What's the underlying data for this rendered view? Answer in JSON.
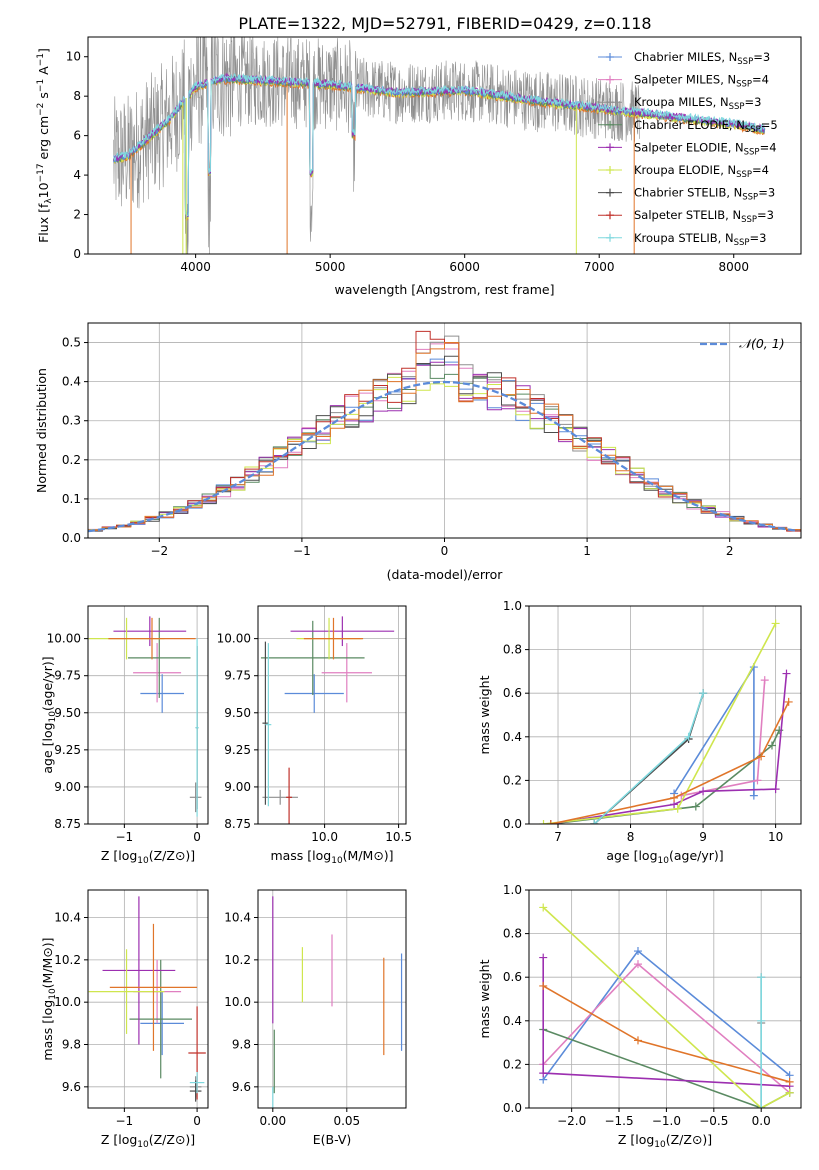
{
  "title": "PLATE=1322, MJD=52791, FIBERID=0429, z=0.118",
  "colors": {
    "chabrier_miles": "#5b8bd9",
    "salpeter_miles": "#e07fc0",
    "kroupa_miles": "#8f8f8f",
    "chabrier_elodie": "#5a8a62",
    "salpeter_elodie": "#9c2fb0",
    "kroupa_elodie": "#cfe64e",
    "chabrier_stelib": "#4d4d4d",
    "salpeter_stelib": "#c0302a",
    "kroupa_stelib": "#7fd8de",
    "orange": "#e0752a"
  },
  "chart_data": [
    {
      "id": "spectrum",
      "type": "line",
      "xlabel": "wavelength [Angstrom, rest frame]",
      "ylabel_parts": [
        "Flux [f",
        "λ",
        "10",
        "−17",
        " erg cm",
        "−2",
        " s",
        "−1",
        " A",
        "−1",
        "]"
      ],
      "xlim": [
        3200,
        8500
      ],
      "ylim": [
        0,
        11
      ],
      "xticks": [
        4000,
        5000,
        6000,
        7000,
        8000
      ],
      "yticks": [
        0,
        2,
        4,
        6,
        8,
        10
      ],
      "legend_position": "top-right",
      "legend": [
        {
          "imf": "Chabrier",
          "lib": "MILES",
          "n": "3",
          "ckey": "chabrier_miles"
        },
        {
          "imf": "Salpeter",
          "lib": "MILES",
          "n": "4",
          "ckey": "salpeter_miles"
        },
        {
          "imf": "Kroupa",
          "lib": "MILES",
          "n": "3",
          "ckey": "kroupa_miles"
        },
        {
          "imf": "Chabrier",
          "lib": "ELODIE",
          "n": "5",
          "ckey": "chabrier_elodie"
        },
        {
          "imf": "Salpeter",
          "lib": "ELODIE",
          "n": "4",
          "ckey": "salpeter_elodie"
        },
        {
          "imf": "Kroupa",
          "lib": "ELODIE",
          "n": "4",
          "ckey": "kroupa_elodie"
        },
        {
          "imf": "Chabrier",
          "lib": "STELIB",
          "n": "3",
          "ckey": "chabrier_stelib"
        },
        {
          "imf": "Salpeter",
          "lib": "STELIB",
          "n": "3",
          "ckey": "salpeter_stelib"
        },
        {
          "imf": "Kroupa",
          "lib": "STELIB",
          "n": "3",
          "ckey": "kroupa_stelib"
        }
      ],
      "continuum": [
        [
          3390,
          4.8
        ],
        [
          3500,
          5.0
        ],
        [
          3600,
          5.6
        ],
        [
          3800,
          6.8
        ],
        [
          4000,
          8.5
        ],
        [
          4200,
          8.9
        ],
        [
          4500,
          8.8
        ],
        [
          5000,
          8.6
        ],
        [
          5500,
          8.2
        ],
        [
          6000,
          8.3
        ],
        [
          6500,
          7.8
        ],
        [
          7000,
          7.4
        ],
        [
          7500,
          7.0
        ],
        [
          8000,
          6.6
        ],
        [
          8230,
          6.3
        ]
      ],
      "absorption_lines": [
        [
          3934,
          0.5
        ],
        [
          4102,
          3.0
        ],
        [
          4861,
          3.0
        ],
        [
          5175,
          5.5
        ]
      ],
      "deep_dips": [
        {
          "x": 3520,
          "y": 0,
          "ckey": "orange"
        },
        {
          "x": 3905,
          "y": 0,
          "ckey": "kroupa_elodie"
        },
        {
          "x": 3930,
          "y": 0,
          "ckey": "kroupa_elodie"
        },
        {
          "x": 4680,
          "y": 0,
          "ckey": "orange"
        },
        {
          "x": 6830,
          "y": 0,
          "ckey": "kroupa_elodie"
        },
        {
          "x": 7260,
          "y": 0,
          "ckey": "orange"
        }
      ]
    },
    {
      "id": "residuals",
      "type": "histogram",
      "xlabel": "(data-model)/error",
      "ylabel": "Normed distribution",
      "xlim": [
        -2.5,
        2.5
      ],
      "ylim": [
        0,
        0.55
      ],
      "xticks": [
        -2,
        -1,
        0,
        1,
        2
      ],
      "yticks": [
        0.0,
        0.1,
        0.2,
        0.3,
        0.4,
        0.5
      ],
      "ytick_labels": [
        "0.0",
        "0.1",
        "0.2",
        "0.3",
        "0.4",
        "0.5"
      ],
      "legend": "𝒩(0, 1)",
      "legend_position": "top-right",
      "bin_width": 0.1,
      "peak_values": [
        0.48,
        0.53,
        0.52,
        0.45,
        0.46,
        0.41
      ]
    },
    {
      "id": "age_vs_Z",
      "type": "errorbar",
      "xlabel": "Z [log10(Z/Z⊙)]",
      "ylabel": "age  [log10(age/yr)]",
      "xlim": [
        -1.5,
        0.15
      ],
      "ylim": [
        8.75,
        10.22
      ],
      "xticks": [
        -1,
        0
      ],
      "yticks": [
        8.75,
        9.0,
        9.25,
        9.5,
        9.75,
        10.0
      ],
      "ytick_labels": [
        "8.75",
        "9.00",
        "9.25",
        "9.50",
        "9.75",
        "10.00"
      ],
      "points": [
        {
          "x": -0.48,
          "xerr": 0.3,
          "y": 9.63,
          "yerr": 0.13,
          "ckey": "chabrier_miles"
        },
        {
          "x": -0.55,
          "xerr": 0.33,
          "y": 9.77,
          "yerr": 0.2,
          "ckey": "salpeter_miles"
        },
        {
          "x": -0.02,
          "xerr": 0.08,
          "y": 8.93,
          "yerr": 0.1,
          "ckey": "kroupa_miles"
        },
        {
          "x": -0.52,
          "xerr": 0.43,
          "y": 9.87,
          "yerr": 0.27,
          "ckey": "chabrier_elodie"
        },
        {
          "x": -0.65,
          "xerr": 0.5,
          "y": 10.05,
          "yerr": 0.1,
          "ckey": "salpeter_elodie"
        },
        {
          "x": -0.97,
          "xerr": 0.52,
          "y": 10.0,
          "yerr": 0.14,
          "ckey": "kroupa_elodie"
        },
        {
          "x": 0.0,
          "xerr": 0.02,
          "y": 9.4,
          "yerr": 0.55,
          "ckey": "chabrier_stelib"
        },
        {
          "x": -0.62,
          "xerr": 0.6,
          "y": 10.0,
          "yerr": 0.14,
          "ckey": "orange"
        },
        {
          "x": 0.0,
          "xerr": 0.02,
          "y": 9.4,
          "yerr": 0.6,
          "ckey": "kroupa_stelib"
        }
      ]
    },
    {
      "id": "age_vs_mass",
      "type": "errorbar",
      "xlabel": "mass [log10(M/M⊙)]",
      "ylabel": "",
      "xlim": [
        9.55,
        10.55
      ],
      "ylim": [
        8.75,
        10.22
      ],
      "xticks": [
        10.0,
        10.5
      ],
      "xtick_labels": [
        "10.0",
        "10.5"
      ],
      "yticks": [
        8.75,
        9.0,
        9.25,
        9.5,
        9.75,
        10.0
      ],
      "ytick_labels": [
        "8.75",
        "9.00",
        "9.25",
        "9.50",
        "9.75",
        "10.00"
      ],
      "points": [
        {
          "x": 9.93,
          "xerr": 0.2,
          "y": 9.63,
          "yerr": 0.13,
          "ckey": "chabrier_miles"
        },
        {
          "x": 10.15,
          "xerr": 0.17,
          "y": 9.77,
          "yerr": 0.2,
          "ckey": "salpeter_miles"
        },
        {
          "x": 9.7,
          "xerr": 0.12,
          "y": 8.93,
          "yerr": 0.05,
          "ckey": "kroupa_miles"
        },
        {
          "x": 9.92,
          "xerr": 0.35,
          "y": 9.87,
          "yerr": 0.25,
          "ckey": "chabrier_elodie"
        },
        {
          "x": 10.12,
          "xerr": 0.35,
          "y": 10.05,
          "yerr": 0.1,
          "ckey": "salpeter_elodie"
        },
        {
          "x": 10.03,
          "xerr": 0.22,
          "y": 10.0,
          "yerr": 0.14,
          "ckey": "kroupa_elodie"
        },
        {
          "x": 9.6,
          "xerr": 0.02,
          "y": 9.43,
          "yerr": 0.55,
          "ckey": "chabrier_stelib"
        },
        {
          "x": 9.76,
          "xerr": 0.02,
          "y": 8.93,
          "yerr": 0.2,
          "ckey": "salpeter_stelib"
        },
        {
          "x": 10.06,
          "xerr": 0.2,
          "y": 10.0,
          "yerr": 0.14,
          "ckey": "orange"
        },
        {
          "x": 9.62,
          "xerr": 0.02,
          "y": 9.42,
          "yerr": 0.55,
          "ckey": "kroupa_stelib"
        }
      ]
    },
    {
      "id": "weight_vs_age",
      "type": "line",
      "xlabel": "age  [log10(age/yr)]",
      "ylabel": "mass weight",
      "xlim": [
        6.6,
        10.35
      ],
      "ylim": [
        0,
        1.0
      ],
      "xticks": [
        7,
        8,
        9,
        10
      ],
      "yticks": [
        0.0,
        0.2,
        0.4,
        0.6,
        0.8,
        1.0
      ],
      "ytick_labels": [
        "0.0",
        "0.2",
        "0.4",
        "0.6",
        "0.8",
        "1.0"
      ],
      "series": [
        {
          "ckey": "chabrier_miles",
          "points": [
            [
              8.6,
              0.14
            ],
            [
              9.7,
              0.72
            ],
            [
              9.7,
              0.13
            ]
          ]
        },
        {
          "ckey": "salpeter_miles",
          "points": [
            [
              8.7,
              0.13
            ],
            [
              9.75,
              0.2
            ],
            [
              9.85,
              0.66
            ]
          ]
        },
        {
          "ckey": "kroupa_miles",
          "points": [
            [
              7.5,
              0.0
            ],
            [
              8.8,
              0.39
            ],
            [
              9.0,
              0.6
            ]
          ]
        },
        {
          "ckey": "chabrier_elodie",
          "points": [
            [
              6.9,
              0.0
            ],
            [
              8.9,
              0.08
            ],
            [
              9.95,
              0.36
            ],
            [
              10.05,
              0.43
            ]
          ]
        },
        {
          "ckey": "salpeter_elodie",
          "points": [
            [
              6.9,
              0.0
            ],
            [
              8.6,
              0.09
            ],
            [
              9.0,
              0.15
            ],
            [
              10.0,
              0.16
            ],
            [
              10.15,
              0.69
            ]
          ]
        },
        {
          "ckey": "kroupa_elodie",
          "points": [
            [
              6.8,
              0.0
            ],
            [
              8.65,
              0.07
            ],
            [
              10.0,
              0.92
            ]
          ]
        },
        {
          "ckey": "chabrier_stelib",
          "points": [
            [
              7.5,
              0.0
            ],
            [
              8.8,
              0.39
            ],
            [
              9.0,
              0.6
            ]
          ]
        },
        {
          "ckey": "orange",
          "points": [
            [
              6.9,
              0.0
            ],
            [
              8.6,
              0.12
            ],
            [
              9.8,
              0.31
            ],
            [
              10.18,
              0.56
            ]
          ]
        },
        {
          "ckey": "kroupa_stelib",
          "points": [
            [
              7.5,
              0.0
            ],
            [
              8.8,
              0.4
            ],
            [
              9.0,
              0.6
            ]
          ]
        }
      ]
    },
    {
      "id": "mass_vs_Z",
      "type": "errorbar",
      "xlabel": "Z [log10(Z/Z⊙)]",
      "ylabel": "mass [log10(M/M⊙)]",
      "xlim": [
        -1.5,
        0.15
      ],
      "ylim": [
        9.5,
        10.53
      ],
      "xticks": [
        -1,
        0
      ],
      "yticks": [
        9.6,
        9.8,
        10.0,
        10.2,
        10.4
      ],
      "ytick_labels": [
        "9.6",
        "9.8",
        "10.0",
        "10.2",
        "10.4"
      ],
      "points": [
        {
          "x": -0.48,
          "xerr": 0.3,
          "y": 9.9,
          "yerr": 0.15,
          "ckey": "chabrier_miles"
        },
        {
          "x": -0.55,
          "xerr": 0.33,
          "y": 10.05,
          "yerr": 0.15,
          "ckey": "salpeter_miles"
        },
        {
          "x": -0.02,
          "xerr": 0.08,
          "y": 9.6,
          "yerr": 0.05,
          "ckey": "kroupa_miles"
        },
        {
          "x": -0.5,
          "xerr": 0.43,
          "y": 9.92,
          "yerr": 0.28,
          "ckey": "chabrier_elodie"
        },
        {
          "x": -0.8,
          "xerr": 0.5,
          "y": 10.15,
          "yerr": 0.35,
          "ckey": "salpeter_elodie"
        },
        {
          "x": -0.97,
          "xerr": 0.52,
          "y": 10.05,
          "yerr": 0.2,
          "ckey": "kroupa_elodie"
        },
        {
          "x": -0.02,
          "xerr": 0.08,
          "y": 9.58,
          "yerr": 0.05,
          "ckey": "chabrier_stelib"
        },
        {
          "x": 0.0,
          "xerr": 0.12,
          "y": 9.76,
          "yerr": 0.22,
          "ckey": "salpeter_stelib"
        },
        {
          "x": -0.6,
          "xerr": 0.6,
          "y": 10.07,
          "yerr": 0.3,
          "ckey": "orange"
        },
        {
          "x": 0.0,
          "xerr": 0.1,
          "y": 9.62,
          "yerr": 0.05,
          "ckey": "kroupa_stelib"
        }
      ]
    },
    {
      "id": "mass_vs_ebv",
      "type": "errorbar",
      "xlabel": "E(B-V)",
      "ylabel": "",
      "xlim": [
        -0.01,
        0.09
      ],
      "ylim": [
        9.5,
        10.53
      ],
      "xticks": [
        0.0,
        0.05
      ],
      "xtick_labels": [
        "0.00",
        "0.05"
      ],
      "yticks": [
        9.6,
        9.8,
        10.0,
        10.2,
        10.4
      ],
      "ytick_labels": [
        "9.6",
        "9.8",
        "10.0",
        "10.2",
        "10.4"
      ],
      "points": [
        {
          "x": 0.0,
          "y": 9.55,
          "yerr": 0.05,
          "ckey": "kroupa_stelib"
        },
        {
          "x": 0.0,
          "y": 10.2,
          "yerr": 0.3,
          "ckey": "salpeter_elodie"
        },
        {
          "x": 0.001,
          "y": 9.72,
          "yerr": 0.15,
          "ckey": "chabrier_elodie"
        },
        {
          "x": 0.02,
          "y": 10.13,
          "yerr": 0.13,
          "ckey": "kroupa_elodie"
        },
        {
          "x": 0.04,
          "y": 10.15,
          "yerr": 0.17,
          "ckey": "salpeter_miles"
        },
        {
          "x": 0.075,
          "y": 9.98,
          "yerr": 0.23,
          "ckey": "orange"
        },
        {
          "x": 0.087,
          "y": 10.0,
          "yerr": 0.23,
          "ckey": "chabrier_miles"
        }
      ]
    },
    {
      "id": "weight_vs_Z",
      "type": "line",
      "xlabel": "Z [log10(Z/Z⊙)]",
      "ylabel": "mass weight",
      "xlim": [
        -2.45,
        0.42
      ],
      "ylim": [
        0,
        1.0
      ],
      "xticks": [
        -2.0,
        -1.5,
        -1.0,
        -0.5,
        0.0
      ],
      "xtick_labels": [
        "−2.0",
        "−1.5",
        "−1.0",
        "−0.5",
        "0.0"
      ],
      "yticks": [
        0.0,
        0.2,
        0.4,
        0.6,
        0.8,
        1.0
      ],
      "ytick_labels": [
        "0.0",
        "0.2",
        "0.4",
        "0.6",
        "0.8",
        "1.0"
      ],
      "series": [
        {
          "ckey": "chabrier_miles",
          "points": [
            [
              -2.3,
              0.13
            ],
            [
              -1.3,
              0.72
            ],
            [
              0.3,
              0.15
            ]
          ]
        },
        {
          "ckey": "salpeter_miles",
          "points": [
            [
              -2.3,
              0.2
            ],
            [
              -1.3,
              0.66
            ],
            [
              0.3,
              0.07
            ]
          ]
        },
        {
          "ckey": "kroupa_miles",
          "points": [
            [
              0.0,
              0.0
            ],
            [
              0.0,
              0.39
            ],
            [
              0.0,
              0.6
            ]
          ]
        },
        {
          "ckey": "chabrier_elodie",
          "points": [
            [
              -2.3,
              0.36
            ],
            [
              0.0,
              0.0
            ],
            [
              0.3,
              0.07
            ]
          ]
        },
        {
          "ckey": "salpeter_elodie",
          "points": [
            [
              -2.3,
              0.69
            ],
            [
              -2.3,
              0.16
            ],
            [
              0.3,
              0.1
            ]
          ]
        },
        {
          "ckey": "kroupa_elodie",
          "points": [
            [
              -2.3,
              0.92
            ],
            [
              0.0,
              0.0
            ],
            [
              0.3,
              0.07
            ]
          ]
        },
        {
          "ckey": "orange",
          "points": [
            [
              -2.3,
              0.56
            ],
            [
              -1.3,
              0.31
            ],
            [
              0.3,
              0.12
            ]
          ]
        },
        {
          "ckey": "kroupa_stelib",
          "points": [
            [
              0.0,
              0.0
            ],
            [
              0.0,
              0.4
            ],
            [
              0.0,
              0.6
            ]
          ]
        }
      ]
    }
  ]
}
